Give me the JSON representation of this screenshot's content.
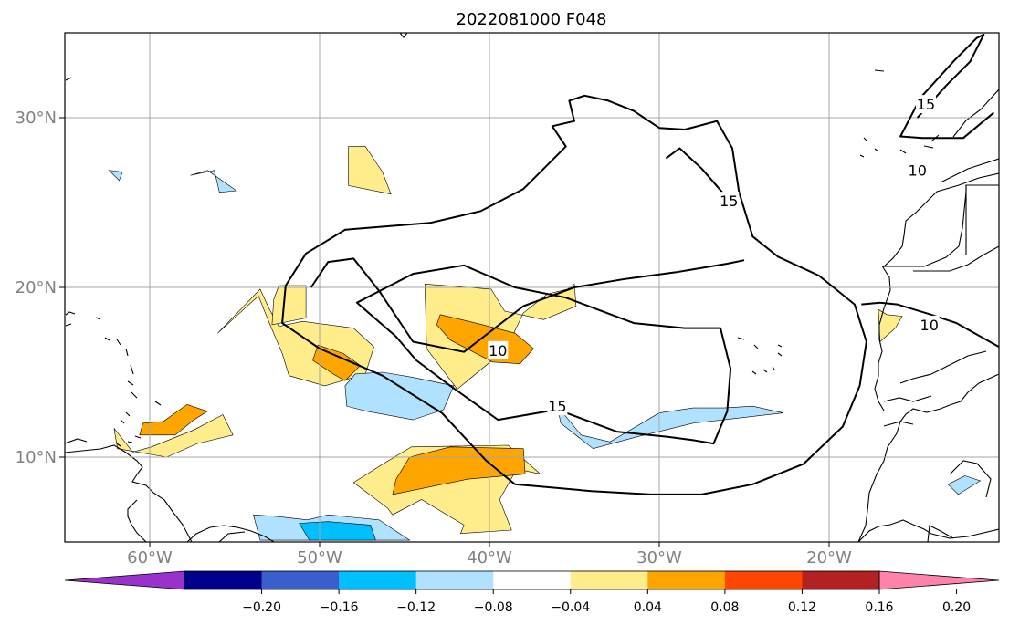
{
  "chart_data": {
    "type": "map-contour",
    "title": "2022081000 F048",
    "projection": "PlateCarree",
    "lon_range": [
      -65,
      -10
    ],
    "lat_range": [
      5,
      35
    ],
    "grid": true,
    "xticks": [
      {
        "lon": -60,
        "label": "60°W"
      },
      {
        "lon": -50,
        "label": "50°W"
      },
      {
        "lon": -40,
        "label": "40°W"
      },
      {
        "lon": -30,
        "label": "30°W"
      },
      {
        "lon": -20,
        "label": "20°W"
      }
    ],
    "yticks": [
      {
        "lat": 10,
        "label": "10°N"
      },
      {
        "lat": 20,
        "label": "20°N"
      },
      {
        "lat": 30,
        "label": "30°N"
      }
    ],
    "colorbar": {
      "orientation": "horizontal",
      "extend": "both",
      "bounds": [
        -0.24,
        -0.2,
        -0.16,
        -0.12,
        -0.08,
        -0.04,
        0.04,
        0.08,
        0.12,
        0.16,
        0.2,
        0.24
      ],
      "colors": [
        "#9932cc",
        "#00008b",
        "#3a5fcd",
        "#00bfff",
        "#b0e2ff",
        "#ffffff",
        "#ffec8b",
        "#ffa500",
        "#ff4500",
        "#b22222",
        "#ff82ab"
      ],
      "tick_labels": [
        "−0.20",
        "−0.16",
        "−0.12",
        "−0.08",
        "−0.04",
        "0.04",
        "0.08",
        "0.12",
        "0.16",
        "0.20"
      ]
    },
    "contour_lines": {
      "color": "#000000",
      "levels": [
        10,
        15
      ],
      "labels": [
        {
          "text": "10",
          "lon": -39.5,
          "lat": 16.3
        },
        {
          "text": "15",
          "lon": -36.0,
          "lat": 13.0
        },
        {
          "text": "15",
          "lon": -25.9,
          "lat": 25.1
        },
        {
          "text": "10",
          "lon": -14.1,
          "lat": 17.8
        },
        {
          "text": "10",
          "lon": -14.8,
          "lat": 26.9
        },
        {
          "text": "15",
          "lon": -14.3,
          "lat": 30.8
        }
      ],
      "lines": [
        {
          "level": 10,
          "points": [
            [
              -38.5,
              8.4
            ],
            [
              -34,
              8.0
            ],
            [
              -30.5,
              7.8
            ],
            [
              -27.5,
              7.8
            ],
            [
              -24.5,
              8.4
            ],
            [
              -21.5,
              9.6
            ],
            [
              -19.2,
              11.8
            ],
            [
              -18.2,
              14.2
            ],
            [
              -17.8,
              16.8
            ],
            [
              -18.5,
              19.0
            ],
            [
              -20.6,
              20.7
            ],
            [
              -23,
              21.8
            ],
            [
              -24.5,
              23.0
            ],
            [
              -25.3,
              25.6
            ],
            [
              -25.7,
              28.2
            ],
            [
              -26.6,
              29.8
            ],
            [
              -28.5,
              29.3
            ],
            [
              -30,
              29.4
            ],
            [
              -31.5,
              30.4
            ],
            [
              -33,
              31.0
            ],
            [
              -34.4,
              31.3
            ],
            [
              -35.3,
              31.0
            ],
            [
              -35.0,
              29.8
            ],
            [
              -36.3,
              29.5
            ],
            [
              -35.5,
              28.3
            ],
            [
              -36.7,
              27.1
            ],
            [
              -38,
              25.8
            ],
            [
              -40.5,
              24.5
            ],
            [
              -43.5,
              23.8
            ],
            [
              -48.5,
              23.4
            ],
            [
              -50.8,
              22.0
            ],
            [
              -52,
              20.1
            ],
            [
              -52.2,
              17.9
            ],
            [
              -50,
              16.4
            ],
            [
              -46.3,
              14.8
            ],
            [
              -42.8,
              12.6
            ],
            [
              -40.2,
              9.8
            ],
            [
              -38.5,
              8.4
            ]
          ]
        },
        {
          "level": 10,
          "points": [
            [
              -25,
              21.6
            ],
            [
              -26,
              21.4
            ],
            [
              -29,
              20.9
            ],
            [
              -32,
              20.5
            ],
            [
              -35,
              20.0
            ],
            [
              -38,
              18.9
            ],
            [
              -41.5,
              16.2
            ],
            [
              -44.5,
              16.8
            ],
            [
              -46.5,
              19.8
            ],
            [
              -48,
              21.7
            ],
            [
              -49.5,
              21.5
            ],
            [
              -50.5,
              20.0
            ]
          ]
        },
        {
          "level": 10,
          "points": [
            [
              -18.1,
              19.0
            ],
            [
              -17,
              19.1
            ],
            [
              -16,
              19.0
            ],
            [
              -14,
              18.4
            ],
            [
              -12.5,
              17.9
            ],
            [
              -10,
              16.5
            ]
          ]
        },
        {
          "level": 15,
          "points": [
            [
              -28,
              11.0
            ],
            [
              -26.8,
              10.8
            ],
            [
              -26.0,
              12.7
            ],
            [
              -25.8,
              15.2
            ],
            [
              -26.4,
              17.6
            ],
            [
              -28.5,
              17.6
            ],
            [
              -31.5,
              17.9
            ],
            [
              -35.5,
              19.4
            ],
            [
              -38.5,
              20.0
            ],
            [
              -41.5,
              21.3
            ],
            [
              -44.5,
              20.8
            ],
            [
              -47.8,
              19.1
            ],
            [
              -45.5,
              17.1
            ],
            [
              -44.3,
              15.7
            ],
            [
              -42.3,
              14.2
            ],
            [
              -39.5,
              12.2
            ],
            [
              -36.0,
              12.8
            ],
            [
              -32.5,
              11.5
            ],
            [
              -29.5,
              11.2
            ],
            [
              -28,
              11.0
            ]
          ]
        },
        {
          "level": 15,
          "points": [
            [
              -29.6,
              27.6
            ],
            [
              -28.8,
              28.2
            ],
            [
              -27.5,
              27.0
            ],
            [
              -26.2,
              25.5
            ],
            [
              -25.9,
              24.6
            ]
          ]
        },
        {
          "level": 15,
          "points": [
            [
              -14.8,
              30.0
            ],
            [
              -13.1,
              31.9
            ],
            [
              -11.7,
              33.3
            ],
            [
              -10.9,
              34.9
            ],
            [
              -11.3,
              34.7
            ],
            [
              -12.6,
              33.4
            ],
            [
              -14.6,
              31.2
            ],
            [
              -15.8,
              28.9
            ],
            [
              -14.5,
              28.8
            ],
            [
              -12.1,
              28.8
            ],
            [
              -10.3,
              30.3
            ]
          ]
        }
      ]
    },
    "shaded_regions": [
      {
        "value": 0.06,
        "points": [
          [
            -56.0,
            17.3
          ],
          [
            -53.5,
            19.9
          ],
          [
            -53,
            18.8
          ],
          [
            -52.4,
            17.7
          ],
          [
            -51.0,
            18.0
          ],
          [
            -48.0,
            17.6
          ],
          [
            -46.8,
            16.5
          ],
          [
            -47.3,
            14.9
          ],
          [
            -49.7,
            14.2
          ],
          [
            -51.8,
            14.8
          ],
          [
            -52.2,
            16.1
          ],
          [
            -53.0,
            18.0
          ],
          [
            -53.6,
            19.5
          ]
        ]
      },
      {
        "value": 0.06,
        "points": [
          [
            -52.4,
            20.1
          ],
          [
            -50.8,
            20.1
          ],
          [
            -50.8,
            18.2
          ],
          [
            -52.8,
            17.8
          ],
          [
            -52.7,
            19.3
          ]
        ]
      },
      {
        "value": 0.06,
        "points": [
          [
            -48.3,
            28.3
          ],
          [
            -47.3,
            28.3
          ],
          [
            -46.3,
            26.8
          ],
          [
            -45.8,
            25.5
          ],
          [
            -48.3,
            26.0
          ]
        ]
      },
      {
        "value": 0.06,
        "points": [
          [
            -62.1,
            11.7
          ],
          [
            -61.0,
            10.3
          ],
          [
            -59.9,
            10.6
          ],
          [
            -57.4,
            11.6
          ],
          [
            -55.7,
            12.5
          ],
          [
            -55.1,
            11.3
          ],
          [
            -57.2,
            10.8
          ],
          [
            -59.0,
            10.0
          ],
          [
            -61.9,
            10.5
          ]
        ]
      },
      {
        "value": 0.06,
        "points": [
          [
            -46.1,
            9.7
          ],
          [
            -48.0,
            8.5
          ],
          [
            -46.0,
            7.0
          ],
          [
            -45.7,
            6.6
          ],
          [
            -44.0,
            7.5
          ],
          [
            -41.5,
            6.0
          ],
          [
            -41.7,
            5.5
          ],
          [
            -38.7,
            5.7
          ],
          [
            -39.4,
            7.5
          ],
          [
            -38.4,
            9.3
          ],
          [
            -37.0,
            9.0
          ],
          [
            -38.9,
            10.7
          ],
          [
            -44.6,
            10.6
          ]
        ]
      },
      {
        "value": 0.06,
        "points": [
          [
            -43.8,
            20.2
          ],
          [
            -39.9,
            19.9
          ],
          [
            -39.1,
            18.6
          ],
          [
            -36.8,
            18.1
          ],
          [
            -34.9,
            18.9
          ],
          [
            -35.0,
            20.2
          ],
          [
            -35.4,
            19.9
          ],
          [
            -36.6,
            19.6
          ],
          [
            -38.0,
            18.5
          ],
          [
            -39.0,
            16.4
          ],
          [
            -41.9,
            14.0
          ],
          [
            -43.7,
            16.4
          ]
        ]
      },
      {
        "value": 0.06,
        "points": [
          [
            -17.0,
            16.8
          ],
          [
            -16.1,
            17.6
          ],
          [
            -15.7,
            18.3
          ],
          [
            -16.6,
            18.4
          ],
          [
            -17.1,
            18.7
          ]
        ]
      },
      {
        "value": 0.1,
        "points": [
          [
            -60.6,
            11.3
          ],
          [
            -58.5,
            11.3
          ],
          [
            -57.4,
            12.2
          ],
          [
            -56.6,
            12.7
          ],
          [
            -57.8,
            13.1
          ],
          [
            -59.2,
            12.1
          ],
          [
            -60.4,
            12.0
          ]
        ]
      },
      {
        "value": 0.1,
        "points": [
          [
            -50.1,
            16.6
          ],
          [
            -48.6,
            16.1
          ],
          [
            -47.6,
            15.4
          ],
          [
            -48.5,
            14.5
          ],
          [
            -49.2,
            14.9
          ],
          [
            -50.4,
            15.7
          ]
        ]
      },
      {
        "value": 0.1,
        "points": [
          [
            -45.7,
            7.8
          ],
          [
            -41.3,
            8.7
          ],
          [
            -37.9,
            9.0
          ],
          [
            -38.0,
            10.5
          ],
          [
            -42.3,
            10.6
          ],
          [
            -44.7,
            10.0
          ],
          [
            -45.5,
            8.7
          ]
        ]
      },
      {
        "value": 0.1,
        "points": [
          [
            -42.9,
            18.4
          ],
          [
            -40.4,
            17.8
          ],
          [
            -38.5,
            17.3
          ],
          [
            -37.4,
            16.4
          ],
          [
            -38.2,
            15.5
          ],
          [
            -39.8,
            15.6
          ],
          [
            -42.3,
            16.9
          ],
          [
            -43.1,
            17.8
          ]
        ]
      },
      {
        "value": -0.06,
        "points": [
          [
            -48.4,
            13.0
          ],
          [
            -47.2,
            12.7
          ],
          [
            -44.5,
            12.2
          ],
          [
            -42.7,
            12.8
          ],
          [
            -42.1,
            14.2
          ],
          [
            -44.5,
            14.7
          ],
          [
            -46.3,
            15.0
          ],
          [
            -47.9,
            14.9
          ],
          [
            -48.5,
            14.2
          ]
        ]
      },
      {
        "value": -0.06,
        "points": [
          [
            -36.0,
            13.0
          ],
          [
            -34.6,
            11.3
          ],
          [
            -32.9,
            10.9
          ],
          [
            -30.0,
            12.6
          ],
          [
            -28.0,
            12.9
          ],
          [
            -26.2,
            12.9
          ],
          [
            -24.5,
            13.0
          ],
          [
            -22.7,
            12.6
          ],
          [
            -26.2,
            12.2
          ],
          [
            -28.0,
            12.0
          ],
          [
            -31.3,
            11.2
          ],
          [
            -33.9,
            10.5
          ],
          [
            -35.8,
            12.0
          ]
        ]
      },
      {
        "value": -0.06,
        "points": [
          [
            -57.6,
            26.6
          ],
          [
            -56.2,
            26.9
          ],
          [
            -55.9,
            25.6
          ],
          [
            -54.9,
            25.7
          ],
          [
            -56.6,
            26.9
          ]
        ]
      },
      {
        "value": -0.06,
        "points": [
          [
            -61.8,
            26.3
          ],
          [
            -61.6,
            26.8
          ],
          [
            -62.4,
            26.9
          ]
        ]
      },
      {
        "value": -0.06,
        "points": [
          [
            -53.9,
            6.6
          ],
          [
            -52.5,
            6.5
          ],
          [
            -50.7,
            6.3
          ],
          [
            -49.5,
            6.6
          ],
          [
            -46.5,
            6.3
          ],
          [
            -44.7,
            5.1
          ],
          [
            -53.5,
            5.1
          ]
        ]
      },
      {
        "value": -0.06,
        "points": [
          [
            -12.0,
            8.9
          ],
          [
            -11.1,
            8.6
          ],
          [
            -12.4,
            7.8
          ],
          [
            -13.0,
            8.4
          ]
        ]
      },
      {
        "value": -0.1,
        "points": [
          [
            -51.2,
            6.1
          ],
          [
            -49.5,
            6.2
          ],
          [
            -47.0,
            6.0
          ],
          [
            -46.7,
            5.1
          ],
          [
            -50.6,
            5.1
          ]
        ]
      }
    ]
  }
}
